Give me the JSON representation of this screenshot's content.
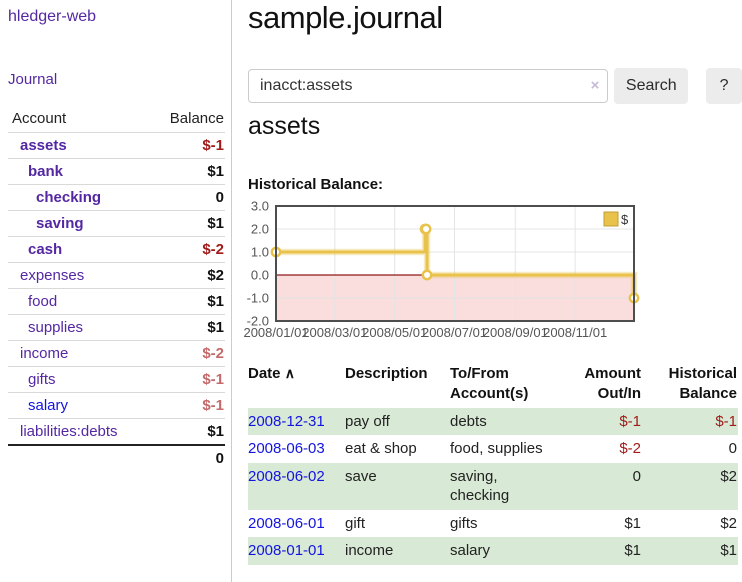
{
  "sidebar": {
    "app_title": "hledger-web",
    "journal_label": "Journal",
    "accounts_table": {
      "headers": {
        "account": "Account",
        "balance": "Balance"
      },
      "rows": [
        {
          "name": "assets",
          "depth": 1,
          "bold": true,
          "balance": "$-1"
        },
        {
          "name": "bank",
          "depth": 2,
          "bold": true,
          "balance": "$1"
        },
        {
          "name": "checking",
          "depth": 3,
          "bold": true,
          "balance": "0"
        },
        {
          "name": "saving",
          "depth": 3,
          "bold": true,
          "balance": "$1"
        },
        {
          "name": "cash",
          "depth": 2,
          "bold": true,
          "balance": "$-2"
        },
        {
          "name": "expenses",
          "depth": 1,
          "bold": false,
          "balance": "$2"
        },
        {
          "name": "food",
          "depth": 2,
          "bold": false,
          "balance": "$1"
        },
        {
          "name": "supplies",
          "depth": 2,
          "bold": false,
          "balance": "$1"
        },
        {
          "name": "income",
          "depth": 1,
          "bold": false,
          "balance": "$-2"
        },
        {
          "name": "gifts",
          "depth": 2,
          "bold": false,
          "balance": "$-1"
        },
        {
          "name": "salary",
          "depth": 2,
          "bold": false,
          "balance": "$-1"
        },
        {
          "name": "liabilities:debts",
          "depth": 1,
          "bold": false,
          "balance": "$1"
        }
      ],
      "total": "0"
    }
  },
  "header": {
    "title": "sample.journal"
  },
  "search": {
    "value": "inacct:assets",
    "clear_icon": "×",
    "button_label": "Search",
    "help_label": "?"
  },
  "account_page": {
    "heading": "assets",
    "chart_title": "Historical Balance:"
  },
  "chart_data": {
    "type": "line",
    "style": "step-after-with-markers",
    "title": "Historical Balance:",
    "series": [
      {
        "name": "$",
        "color": "#e9c24b",
        "points": [
          {
            "date": "2008-01-01",
            "value": 1
          },
          {
            "date": "2008-06-01",
            "value": 2
          },
          {
            "date": "2008-06-02",
            "value": 2
          },
          {
            "date": "2008-06-03",
            "value": 0
          },
          {
            "date": "2008-12-31",
            "value": -1
          }
        ]
      }
    ],
    "xrange": [
      "2008-01-01",
      "2008-12-31"
    ],
    "ylim": [
      -2.0,
      3.0
    ],
    "yticks": [
      "3.0",
      "2.0",
      "1.0",
      "0.0",
      "-1.0",
      "-2.0"
    ],
    "ytick_values": [
      3,
      2,
      1,
      0,
      -1,
      -2
    ],
    "xticks": [
      "2008/01/01",
      "2008/03/01",
      "2008/05/01",
      "2008/07/01",
      "2008/09/01",
      "2008/11/01"
    ],
    "grid": true,
    "legend_position": "top-right",
    "negative_region_fill": "#fadddd",
    "zero_line_color": "#8f1a1a"
  },
  "register_table": {
    "headers": {
      "date": "Date",
      "sort_asc_icon": "∧",
      "description": "Description",
      "accounts": "To/From Account(s)",
      "amount": "Amount Out/In",
      "balance": "Historical Balance"
    },
    "rows": [
      {
        "date": "2008-12-31",
        "description": "pay off",
        "accounts": "debts",
        "amount": "$-1",
        "balance": "$-1"
      },
      {
        "date": "2008-06-03",
        "description": "eat & shop",
        "accounts": "food, supplies",
        "amount": "$-2",
        "balance": "0"
      },
      {
        "date": "2008-06-02",
        "description": "save",
        "accounts": "saving, checking",
        "amount": "0",
        "balance": "$2"
      },
      {
        "date": "2008-06-01",
        "description": "gift",
        "accounts": "gifts",
        "amount": "$1",
        "balance": "$2"
      },
      {
        "date": "2008-01-01",
        "description": "income",
        "accounts": "salary",
        "amount": "$1",
        "balance": "$1"
      }
    ]
  },
  "colors": {
    "link_purple": "#5428a2",
    "link_blue": "#1414e0",
    "negative_strong": "#a11b1b",
    "negative_soft": "#c46a6a",
    "row_green": "#d8e9d5",
    "chart_gold": "#e9c24b",
    "chart_negative_fill": "#fadddd",
    "chart_zero_line": "#8f1a1a"
  }
}
